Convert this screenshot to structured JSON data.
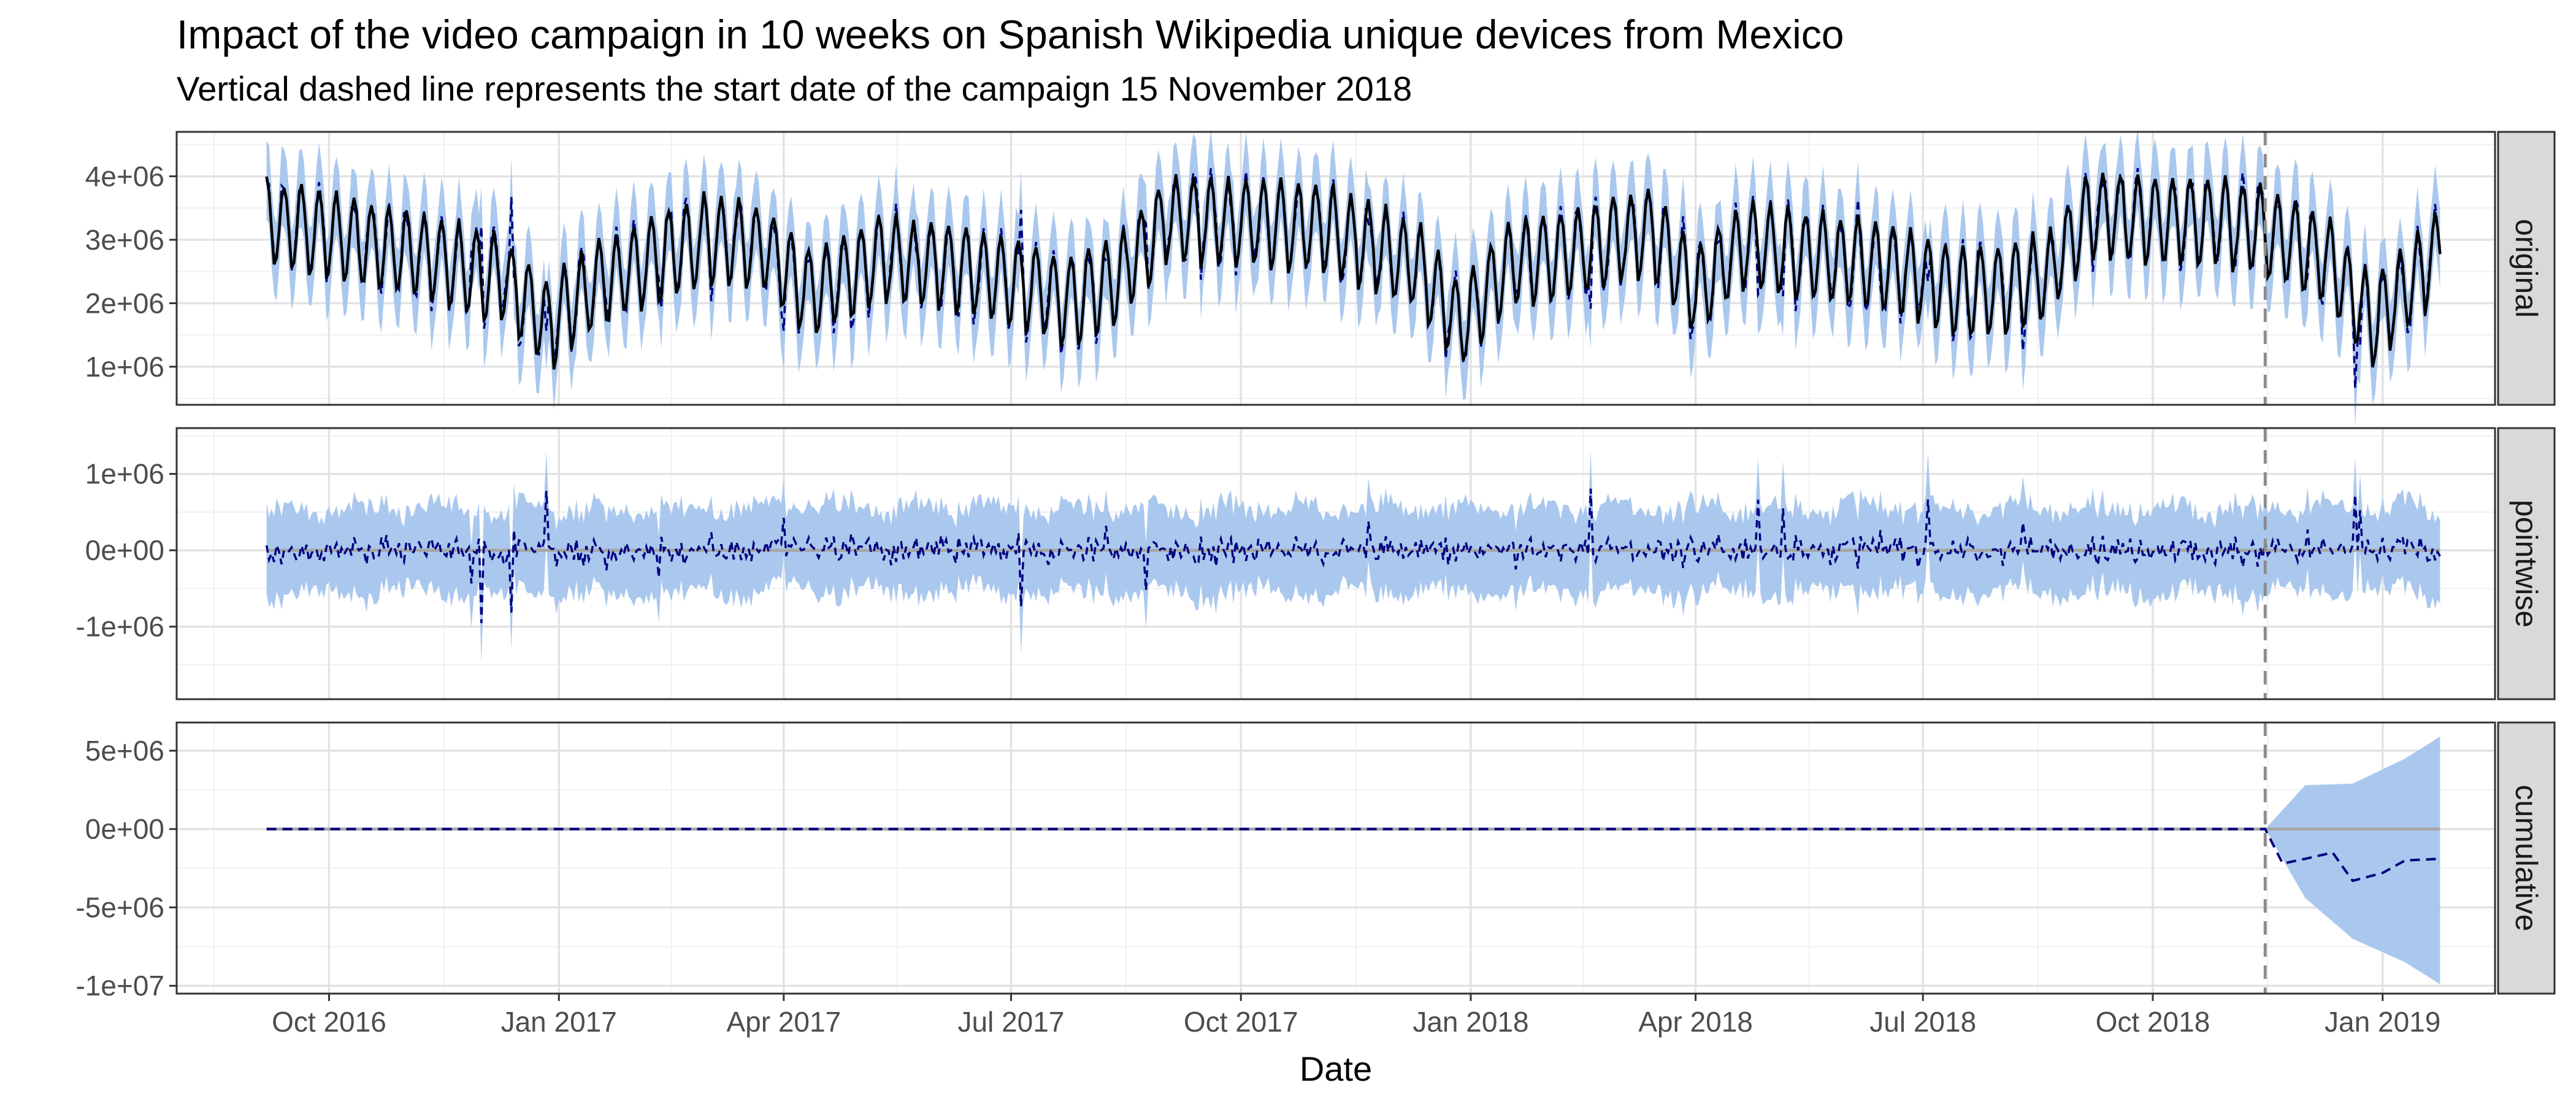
{
  "chart_data": {
    "type": "line",
    "title": "Impact of the video campaign in 10 weeks on Spanish Wikipedia unique devices from Mexico",
    "subtitle": "Vertical dashed line represents the start date of the campaign 15 November 2018",
    "xlabel": "Date",
    "x_range": [
      "2016-08-01",
      "2019-02-15"
    ],
    "x_ticks": [
      {
        "date": "2016-10-01",
        "label": "Oct 2016"
      },
      {
        "date": "2017-01-01",
        "label": "Jan 2017"
      },
      {
        "date": "2017-04-01",
        "label": "Apr 2017"
      },
      {
        "date": "2017-07-01",
        "label": "Jul 2017"
      },
      {
        "date": "2017-10-01",
        "label": "Oct 2017"
      },
      {
        "date": "2018-01-01",
        "label": "Jan 2018"
      },
      {
        "date": "2018-04-01",
        "label": "Apr 2018"
      },
      {
        "date": "2018-07-01",
        "label": "Jul 2018"
      },
      {
        "date": "2018-10-01",
        "label": "Oct 2018"
      },
      {
        "date": "2019-01-01",
        "label": "Jan 2019"
      }
    ],
    "intervention_date": "2018-11-15",
    "series_start": "2016-09-06",
    "series_end": "2019-01-24",
    "grid": true,
    "colors": {
      "band": "#aac8ee",
      "predicted": "#00007f",
      "observed": "#000000",
      "zero_line": "#a6a6a6",
      "intervention": "#8c8c8c",
      "strip_fill": "#d9d9d9"
    },
    "panels": [
      {
        "label": "original",
        "ylim": [
          400000,
          4700000
        ],
        "y_ticks": [
          {
            "value": 1000000,
            "label": "1e+06"
          },
          {
            "value": 2000000,
            "label": "2e+06"
          },
          {
            "value": 3000000,
            "label": "3e+06"
          },
          {
            "value": 4000000,
            "label": "4e+06"
          }
        ],
        "trend": [
          [
            "2016-09-06",
            3300000
          ],
          [
            "2016-11-01",
            2850000
          ],
          [
            "2016-12-10",
            2400000
          ],
          [
            "2016-12-28",
            1700000
          ],
          [
            "2017-01-15",
            2300000
          ],
          [
            "2017-03-01",
            3050000
          ],
          [
            "2017-03-25",
            2900000
          ],
          [
            "2017-04-12",
            2200000
          ],
          [
            "2017-05-10",
            2750000
          ],
          [
            "2017-06-20",
            2500000
          ],
          [
            "2017-07-25",
            2050000
          ],
          [
            "2017-08-15",
            2500000
          ],
          [
            "2017-09-01",
            3350000
          ],
          [
            "2017-11-01",
            3250000
          ],
          [
            "2017-12-10",
            2650000
          ],
          [
            "2017-12-28",
            1700000
          ],
          [
            "2018-01-15",
            2600000
          ],
          [
            "2018-03-15",
            3150000
          ],
          [
            "2018-04-01",
            2200000
          ],
          [
            "2018-04-20",
            2950000
          ],
          [
            "2018-06-20",
            2600000
          ],
          [
            "2018-07-20",
            2150000
          ],
          [
            "2018-08-20",
            2450000
          ],
          [
            "2018-09-05",
            3450000
          ],
          [
            "2018-11-10",
            3250000
          ],
          [
            "2018-12-10",
            2700000
          ],
          [
            "2018-12-28",
            1700000
          ],
          [
            "2019-01-24",
            2900000
          ]
        ],
        "amplitude": 650000,
        "band_halfwidth": 620000
      },
      {
        "label": "pointwise",
        "ylim": [
          -1950000,
          1600000
        ],
        "y_ticks": [
          {
            "value": -1000000,
            "label": "-1e+06"
          },
          {
            "value": 0,
            "label": "0e+00"
          },
          {
            "value": 1000000,
            "label": "1e+06"
          }
        ],
        "noise_scale": 180000,
        "band_halfwidth": 550000
      },
      {
        "label": "cumulative",
        "ylim": [
          -10500000,
          6800000
        ],
        "y_ticks": [
          {
            "value": -10000000,
            "label": "-1e+07"
          },
          {
            "value": -5000000,
            "label": "-5e+06"
          },
          {
            "value": 0,
            "label": "0e+00"
          },
          {
            "value": 5000000,
            "label": "5e+06"
          }
        ],
        "predicted_after_intervention": [
          [
            "2018-11-15",
            0
          ],
          [
            "2018-11-22",
            -2200000
          ],
          [
            "2018-12-01",
            -1900000
          ],
          [
            "2018-12-12",
            -1500000
          ],
          [
            "2018-12-20",
            -3300000
          ],
          [
            "2019-01-01",
            -2800000
          ],
          [
            "2019-01-10",
            -2000000
          ],
          [
            "2019-01-24",
            -1900000
          ]
        ],
        "band_after_intervention": {
          "upper": [
            [
              "2018-11-15",
              0
            ],
            [
              "2018-12-01",
              2800000
            ],
            [
              "2018-12-20",
              2900000
            ],
            [
              "2019-01-10",
              4500000
            ],
            [
              "2019-01-24",
              5900000
            ]
          ],
          "lower": [
            [
              "2018-11-15",
              0
            ],
            [
              "2018-12-01",
              -4400000
            ],
            [
              "2018-12-20",
              -7000000
            ],
            [
              "2019-01-10",
              -8500000
            ],
            [
              "2019-01-24",
              -9900000
            ]
          ]
        }
      }
    ]
  }
}
